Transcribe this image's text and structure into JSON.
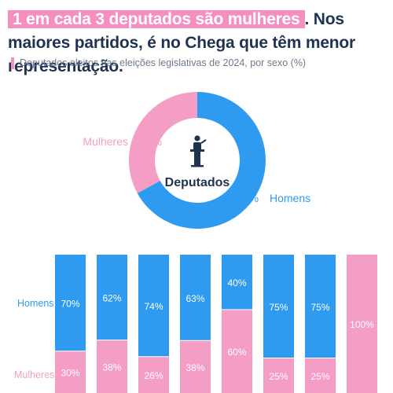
{
  "header": {
    "headline_highlight": "1 em cada 3 deputados são mulheres",
    "headline_rest": ". Nos maiores partidos, é no Chega que têm menor representação.",
    "subtitle": "Deputados eleitos nas eleições legislativas de 2024, por sexo (%)"
  },
  "colors": {
    "homens": "#2e9af0",
    "mulheres": "#f59ec5",
    "text_dark": "#1f3350",
    "grid": "#dfe9f4"
  },
  "chart_data": [
    {
      "type": "pie",
      "center_label": "Deputados",
      "center_icon": "podium-speaker-icon",
      "slices": [
        {
          "label": "Mulheres",
          "value": 33,
          "display": "33%"
        },
        {
          "label": "Homens",
          "value": 67,
          "display": "67%"
        }
      ]
    },
    {
      "type": "bar",
      "stacked": true,
      "categories": [
        "",
        "",
        "",
        "",
        "",
        "",
        "",
        ""
      ],
      "series": [
        {
          "name": "Homens",
          "values": [
            70,
            62,
            74,
            63,
            40,
            75,
            75,
            0
          ],
          "labels": [
            "70%",
            "62%",
            "74%",
            "63%",
            "40%",
            "75%",
            "75%",
            ""
          ]
        },
        {
          "name": "Mulheres",
          "values": [
            30,
            38,
            26,
            38,
            60,
            25,
            25,
            100
          ],
          "labels": [
            "30%",
            "38%",
            "26%",
            "38%",
            "60%",
            "25%",
            "25%",
            "100%"
          ]
        }
      ],
      "ylim": [
        0,
        100
      ]
    }
  ]
}
